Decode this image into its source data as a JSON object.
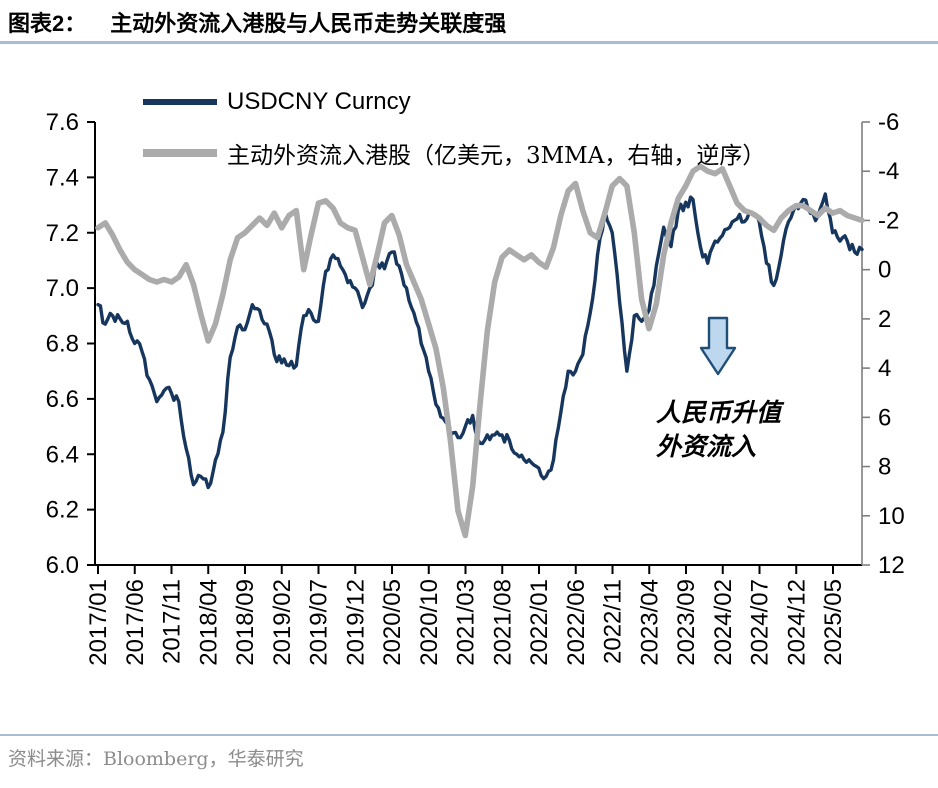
{
  "header": {
    "figure_label": "图表2：",
    "title": "主动外资流入港股与人民币走势关联度强"
  },
  "legend": [
    {
      "name": "USDCNY Curncy",
      "color": "#17365d"
    },
    {
      "name": "主动外资流入港股（亿美元，3MMA，右轴，逆序）",
      "color": "#ababab"
    }
  ],
  "annotation": {
    "line1": "人民币升值",
    "line2": "外资流入",
    "arrow_icon": "down-arrow",
    "arrow_fill": "#bdd7ee",
    "arrow_stroke": "#1f4e79"
  },
  "footer": {
    "source": "资料来源：Bloomberg，华泰研究"
  },
  "chart_data": {
    "type": "line",
    "title": "主动外资流入港股与人民币走势关联度强",
    "x_start": "2017/01",
    "x_end": "2025/09",
    "frequency": "monthly",
    "x_tick_labels": [
      "2017/01",
      "2017/06",
      "2017/11",
      "2018/04",
      "2018/09",
      "2019/02",
      "2019/07",
      "2019/12",
      "2020/05",
      "2020/10",
      "2021/03",
      "2021/08",
      "2022/01",
      "2022/06",
      "2022/11",
      "2023/04",
      "2023/09",
      "2024/02",
      "2024/07",
      "2024/12",
      "2025/05"
    ],
    "left_axis": {
      "min": 6.0,
      "max": 7.6,
      "ticks": [
        7.6,
        7.4,
        7.2,
        7.0,
        6.8,
        6.6,
        6.4,
        6.2,
        6.0
      ],
      "inverted": false
    },
    "right_axis": {
      "min": -6,
      "max": 12,
      "ticks": [
        -6,
        -4,
        -2,
        0,
        2,
        4,
        6,
        8,
        10,
        12
      ],
      "inverted": true,
      "unit": "亿美元，3MMA，逆序"
    },
    "grid": false,
    "legend_position": "top-left",
    "series": [
      {
        "name": "USDCNY Curncy",
        "axis": "left",
        "color": "#17365d",
        "style": "jagged-daily",
        "values": [
          6.94,
          6.87,
          6.9,
          6.89,
          6.88,
          6.8,
          6.77,
          6.67,
          6.59,
          6.63,
          6.62,
          6.59,
          6.42,
          6.29,
          6.32,
          6.28,
          6.38,
          6.48,
          6.75,
          6.86,
          6.85,
          6.94,
          6.92,
          6.87,
          6.76,
          6.73,
          6.72,
          6.72,
          6.9,
          6.91,
          6.88,
          7.06,
          7.12,
          7.08,
          7.02,
          7.0,
          6.93,
          7.0,
          7.09,
          7.07,
          7.13,
          7.08,
          7.0,
          6.91,
          6.8,
          6.7,
          6.58,
          6.53,
          6.47,
          6.46,
          6.5,
          6.54,
          6.44,
          6.47,
          6.47,
          6.47,
          6.45,
          6.4,
          6.38,
          6.37,
          6.35,
          6.32,
          6.38,
          6.55,
          6.7,
          6.7,
          6.76,
          6.91,
          7.12,
          7.28,
          7.2,
          6.95,
          6.7,
          6.9,
          6.88,
          6.92,
          7.08,
          7.22,
          7.15,
          7.28,
          7.31,
          7.32,
          7.15,
          7.09,
          7.17,
          7.19,
          7.22,
          7.25,
          7.24,
          7.27,
          7.24,
          7.09,
          7.01,
          7.12,
          7.24,
          7.3,
          7.32,
          7.27,
          7.26,
          7.34,
          7.2,
          7.17,
          7.17,
          7.13,
          7.14
        ]
      },
      {
        "name": "主动外资流入港股（亿美元，3MMA，右轴，逆序）",
        "axis": "right",
        "color": "#ababab",
        "style": "smooth",
        "values": [
          -1.7,
          -1.9,
          -1.4,
          -0.8,
          -0.3,
          0.0,
          0.2,
          0.4,
          0.5,
          0.4,
          0.5,
          0.3,
          -0.2,
          0.6,
          1.8,
          2.9,
          2.2,
          1.0,
          -0.4,
          -1.3,
          -1.5,
          -1.8,
          -2.1,
          -1.8,
          -2.3,
          -1.7,
          -2.2,
          -2.4,
          0.0,
          -1.4,
          -2.7,
          -2.8,
          -2.5,
          -1.9,
          -1.7,
          -1.6,
          -0.5,
          0.6,
          -0.6,
          -1.9,
          -2.2,
          -1.4,
          -0.2,
          0.5,
          1.2,
          2.2,
          3.2,
          4.8,
          7.0,
          9.8,
          10.8,
          8.8,
          5.5,
          2.5,
          0.5,
          -0.5,
          -0.8,
          -0.6,
          -0.4,
          -0.6,
          -0.3,
          -0.1,
          -0.9,
          -2.2,
          -3.2,
          -3.5,
          -2.4,
          -1.5,
          -1.3,
          -2.3,
          -3.4,
          -3.7,
          -3.4,
          -1.5,
          1.2,
          2.4,
          1.4,
          -0.6,
          -1.9,
          -2.9,
          -3.4,
          -4.0,
          -4.2,
          -4.0,
          -3.9,
          -4.1,
          -3.4,
          -2.7,
          -2.4,
          -2.3,
          -2.1,
          -1.8,
          -1.6,
          -2.1,
          -2.4,
          -2.6,
          -2.6,
          -2.4,
          -2.2,
          -2.5,
          -2.3,
          -2.4,
          -2.2,
          -2.1,
          -2.0
        ]
      }
    ]
  }
}
